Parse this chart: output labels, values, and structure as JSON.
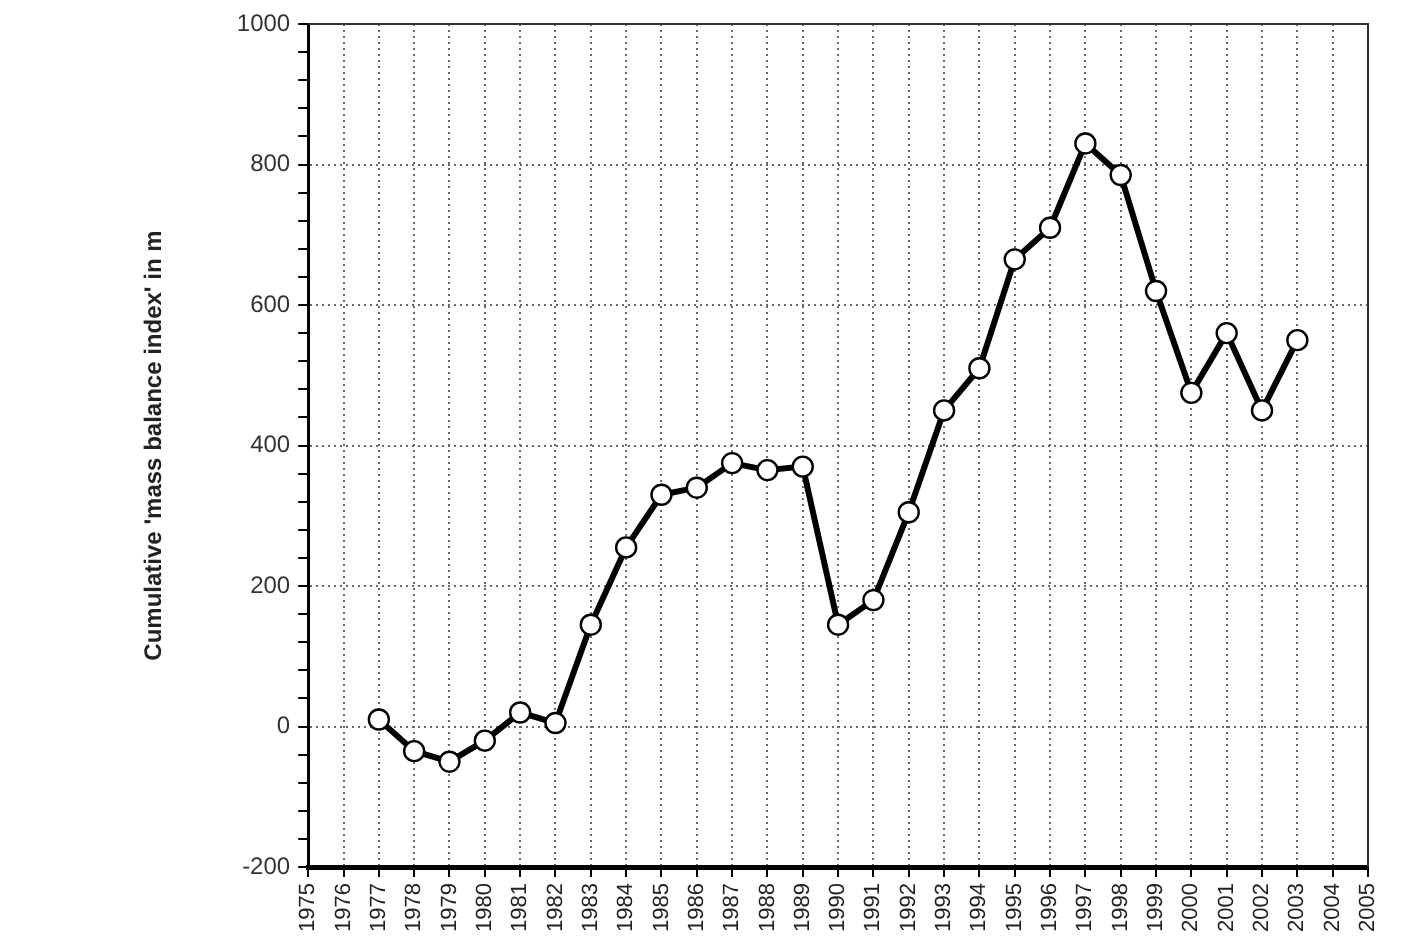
{
  "chart_data": {
    "type": "line",
    "ylabel": "Cumulative 'mass balance index' in m",
    "x": [
      1977,
      1978,
      1979,
      1980,
      1981,
      1982,
      1983,
      1984,
      1985,
      1986,
      1987,
      1988,
      1989,
      1990,
      1991,
      1992,
      1993,
      1994,
      1995,
      1996,
      1997,
      1998,
      1999,
      2000,
      2001,
      2002,
      2003
    ],
    "series": [
      {
        "color": "#000000",
        "values": [
          10,
          -35,
          -50,
          -20,
          20,
          5,
          145,
          255,
          330,
          340,
          375,
          365,
          370,
          145,
          180,
          305,
          450,
          510,
          665,
          710,
          830,
          785,
          620,
          475,
          560,
          450,
          550
        ]
      }
    ],
    "xlim": [
      1975,
      2005
    ],
    "xticks": [
      1975,
      1976,
      1977,
      1978,
      1979,
      1980,
      1981,
      1982,
      1983,
      1984,
      1985,
      1986,
      1987,
      1988,
      1989,
      1990,
      1991,
      1992,
      1993,
      1994,
      1995,
      1996,
      1997,
      1998,
      1999,
      2000,
      2001,
      2002,
      2003,
      2004,
      2005
    ],
    "ylim": [
      -200,
      1000
    ],
    "yticks": [
      -200,
      {
        "value": -160,
        "label": null
      },
      {
        "value": -120,
        "label": null
      },
      {
        "value": -80,
        "label": null
      },
      {
        "value": -40,
        "label": null
      },
      0,
      {
        "value": 40,
        "label": null
      },
      {
        "value": 80,
        "label": null
      },
      {
        "value": 120,
        "label": null
      },
      {
        "value": 160,
        "label": null
      },
      200,
      {
        "value": 240,
        "label": null
      },
      {
        "value": 280,
        "label": null
      },
      {
        "value": 320,
        "label": null
      },
      {
        "value": 360,
        "label": null
      },
      400,
      {
        "value": 440,
        "label": null
      },
      {
        "value": 480,
        "label": null
      },
      {
        "value": 520,
        "label": null
      },
      {
        "value": 560,
        "label": null
      },
      600,
      {
        "value": 640,
        "label": null
      },
      {
        "value": 680,
        "label": null
      },
      {
        "value": 720,
        "label": null
      },
      {
        "value": 760,
        "label": null
      },
      800,
      {
        "value": 840,
        "label": null
      },
      {
        "value": 880,
        "label": null
      },
      {
        "value": 920,
        "label": null
      },
      {
        "value": 960,
        "label": null
      },
      1000
    ],
    "grid": true,
    "marker": "circle",
    "line_style": "solid"
  }
}
